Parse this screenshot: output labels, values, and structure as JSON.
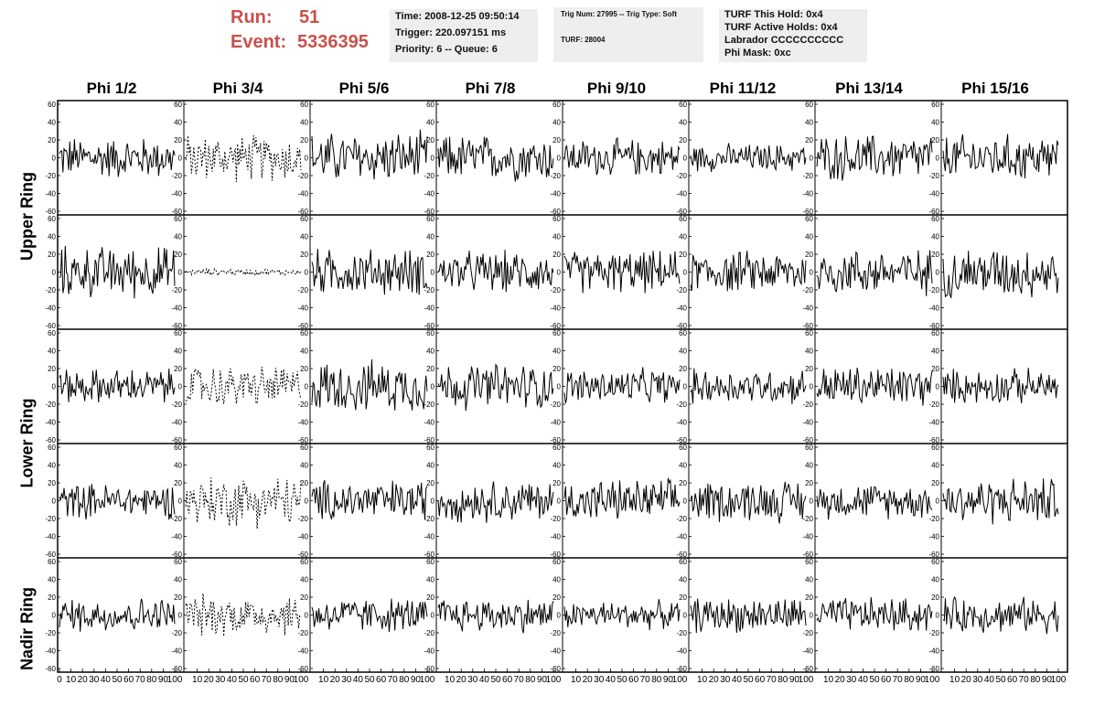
{
  "header": {
    "run_label": "Run:",
    "run_value": "51",
    "event_label": "Event:",
    "event_value": "5336395",
    "time": "Time: 2008-12-25 09:50:14",
    "trigger": "Trigger: 220.097151 ms",
    "priority": "Priority: 6 -- Queue: 6",
    "trig_num": "Trig Num: 27995 -- Trig Type: Soft",
    "turf": "TURF: 28004",
    "turf_hold": "TURF This Hold: 0x4",
    "turf_active": "TURF Active Holds: 0x4",
    "labrador": "Labrador CCCCCCCCCC",
    "phi_mask": "Phi Mask: 0xc"
  },
  "columns": [
    "Phi 1/2",
    "Phi 3/4",
    "Phi 5/6",
    "Phi 7/8",
    "Phi 9/10",
    "Phi 11/12",
    "Phi 13/14",
    "Phi 15/16"
  ],
  "rows": [
    "Upper Ring",
    "Lower Ring",
    "Nadir Ring"
  ],
  "colors": {
    "header_red": "#c9504a",
    "info_bg": "#eeeeee",
    "trace": "#000000"
  },
  "chart_data": {
    "type": "line",
    "grid": false,
    "xlim": [
      0,
      100
    ],
    "ylim": [
      -60,
      60
    ],
    "x_ticks": [
      0,
      10,
      20,
      30,
      40,
      50,
      60,
      70,
      80,
      90,
      100
    ],
    "y_ticks": [
      -60,
      -40,
      -20,
      0,
      20,
      40,
      60
    ],
    "panel_rows": 5,
    "panel_cols": 8,
    "amplitudes": [
      [
        18,
        20,
        22,
        20,
        16,
        12,
        20,
        20
      ],
      [
        22,
        3,
        20,
        18,
        18,
        18,
        20,
        22
      ],
      [
        15,
        18,
        22,
        20,
        15,
        15,
        18,
        15
      ],
      [
        15,
        22,
        18,
        18,
        18,
        18,
        15,
        20
      ],
      [
        15,
        18,
        15,
        15,
        12,
        15,
        15,
        15
      ]
    ],
    "dashed_panels": [
      [
        0,
        1
      ],
      [
        1,
        1
      ],
      [
        2,
        1
      ],
      [
        3,
        1
      ],
      [
        4,
        1
      ]
    ]
  }
}
